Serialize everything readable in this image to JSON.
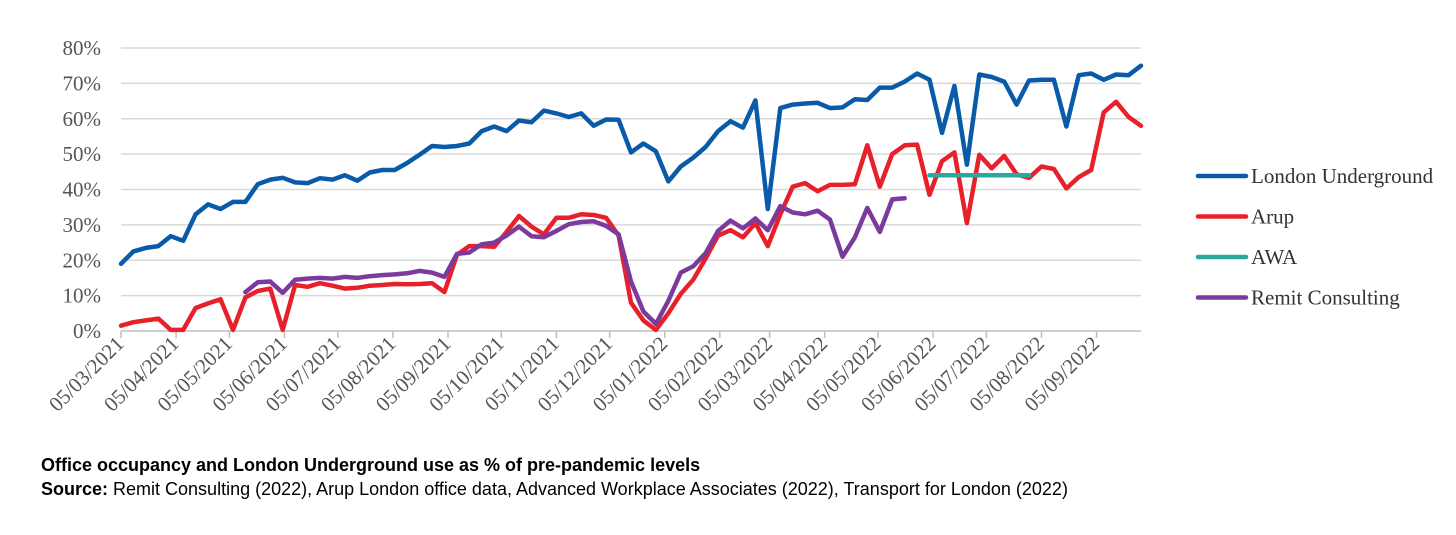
{
  "chart_data": {
    "type": "line",
    "title": "",
    "xlabel": "",
    "ylabel": "",
    "ylim": [
      0,
      80
    ],
    "yticks": [
      0,
      10,
      20,
      30,
      40,
      50,
      60,
      70,
      80
    ],
    "ytick_labels": [
      "0%",
      "10%",
      "20%",
      "30%",
      "40%",
      "50%",
      "60%",
      "70%",
      "80%"
    ],
    "xlim": [
      "2021-03-05",
      "2022-09-30"
    ],
    "xtick_labels": [
      "05/03/2021",
      "05/04/2021",
      "05/05/2021",
      "05/06/2021",
      "05/07/2021",
      "05/08/2021",
      "05/09/2021",
      "05/10/2021",
      "05/11/2021",
      "05/12/2021",
      "05/01/2022",
      "05/02/2022",
      "05/03/2022",
      "05/04/2022",
      "05/05/2022",
      "05/06/2022",
      "05/07/2022",
      "05/08/2022",
      "05/09/2022"
    ],
    "grid": "horizontal",
    "legend_position": "right",
    "series": [
      {
        "name": "London Underground",
        "color": "#0A5AAA",
        "points": [
          [
            "2021-03-05",
            19
          ],
          [
            "2021-03-12",
            22.5
          ],
          [
            "2021-03-19",
            23.5
          ],
          [
            "2021-03-26",
            24
          ],
          [
            "2021-04-02",
            26.8
          ],
          [
            "2021-04-09",
            25.5
          ],
          [
            "2021-04-16",
            33
          ],
          [
            "2021-04-23",
            35.8
          ],
          [
            "2021-04-30",
            34.5
          ],
          [
            "2021-05-07",
            36.5
          ],
          [
            "2021-05-14",
            36.5
          ],
          [
            "2021-05-21",
            41.5
          ],
          [
            "2021-05-28",
            42.8
          ],
          [
            "2021-06-04",
            43.3
          ],
          [
            "2021-06-11",
            42
          ],
          [
            "2021-06-18",
            41.8
          ],
          [
            "2021-06-25",
            43.2
          ],
          [
            "2021-07-02",
            42.8
          ],
          [
            "2021-07-09",
            44
          ],
          [
            "2021-07-16",
            42.5
          ],
          [
            "2021-07-23",
            44.8
          ],
          [
            "2021-07-30",
            45.5
          ],
          [
            "2021-08-06",
            45.5
          ],
          [
            "2021-08-13",
            47.5
          ],
          [
            "2021-08-20",
            49.8
          ],
          [
            "2021-08-27",
            52.3
          ],
          [
            "2021-09-03",
            52
          ],
          [
            "2021-09-10",
            52.3
          ],
          [
            "2021-09-17",
            53
          ],
          [
            "2021-09-24",
            56.5
          ],
          [
            "2021-10-01",
            57.8
          ],
          [
            "2021-10-08",
            56.5
          ],
          [
            "2021-10-15",
            59.5
          ],
          [
            "2021-10-22",
            59
          ],
          [
            "2021-10-29",
            62.3
          ],
          [
            "2021-11-05",
            61.5
          ],
          [
            "2021-11-12",
            60.5
          ],
          [
            "2021-11-19",
            61.5
          ],
          [
            "2021-11-26",
            58
          ],
          [
            "2021-12-03",
            59.8
          ],
          [
            "2021-12-10",
            59.7
          ],
          [
            "2021-12-17",
            50.5
          ],
          [
            "2021-12-24",
            53
          ],
          [
            "2021-12-31",
            50.8
          ],
          [
            "2022-01-07",
            42.3
          ],
          [
            "2022-01-14",
            46.5
          ],
          [
            "2022-01-21",
            49
          ],
          [
            "2022-01-28",
            52
          ],
          [
            "2022-02-04",
            56.5
          ],
          [
            "2022-02-11",
            59.3
          ],
          [
            "2022-02-18",
            57.5
          ],
          [
            "2022-02-25",
            65.2
          ],
          [
            "2022-03-04",
            34.5
          ],
          [
            "2022-03-11",
            63
          ],
          [
            "2022-03-18",
            64
          ],
          [
            "2022-03-25",
            64.3
          ],
          [
            "2022-04-01",
            64.5
          ],
          [
            "2022-04-08",
            63
          ],
          [
            "2022-04-15",
            63.2
          ],
          [
            "2022-04-22",
            65.5
          ],
          [
            "2022-04-29",
            65.3
          ],
          [
            "2022-05-06",
            68.8
          ],
          [
            "2022-05-13",
            68.8
          ],
          [
            "2022-05-20",
            70.5
          ],
          [
            "2022-05-27",
            72.8
          ],
          [
            "2022-06-03",
            71
          ],
          [
            "2022-06-10",
            56
          ],
          [
            "2022-06-17",
            69.3
          ],
          [
            "2022-06-24",
            47
          ],
          [
            "2022-07-01",
            72.5
          ],
          [
            "2022-07-08",
            71.8
          ],
          [
            "2022-07-15",
            70.5
          ],
          [
            "2022-07-22",
            64
          ],
          [
            "2022-07-29",
            70.8
          ],
          [
            "2022-08-05",
            71
          ],
          [
            "2022-08-12",
            71
          ],
          [
            "2022-08-19",
            57.8
          ],
          [
            "2022-08-26",
            72.3
          ],
          [
            "2022-09-02",
            72.8
          ],
          [
            "2022-09-09",
            71
          ],
          [
            "2022-09-16",
            72.5
          ],
          [
            "2022-09-23",
            72.3
          ],
          [
            "2022-09-30",
            75
          ]
        ]
      },
      {
        "name": "Arup",
        "color": "#E8202A",
        "points": [
          [
            "2021-03-05",
            1.5
          ],
          [
            "2021-03-12",
            2.5
          ],
          [
            "2021-03-19",
            3
          ],
          [
            "2021-03-26",
            3.5
          ],
          [
            "2021-04-02",
            0.3
          ],
          [
            "2021-04-09",
            0.3
          ],
          [
            "2021-04-16",
            6.5
          ],
          [
            "2021-04-23",
            7.8
          ],
          [
            "2021-04-30",
            9
          ],
          [
            "2021-05-07",
            0.3
          ],
          [
            "2021-05-14",
            9.5
          ],
          [
            "2021-05-21",
            11.3
          ],
          [
            "2021-05-28",
            12
          ],
          [
            "2021-06-04",
            0.3
          ],
          [
            "2021-06-11",
            13
          ],
          [
            "2021-06-18",
            12.5
          ],
          [
            "2021-06-25",
            13.5
          ],
          [
            "2021-07-02",
            12.8
          ],
          [
            "2021-07-09",
            12
          ],
          [
            "2021-07-16",
            12.2
          ],
          [
            "2021-07-23",
            12.8
          ],
          [
            "2021-07-30",
            13
          ],
          [
            "2021-08-06",
            13.3
          ],
          [
            "2021-08-13",
            13.2
          ],
          [
            "2021-08-20",
            13.3
          ],
          [
            "2021-08-27",
            13.5
          ],
          [
            "2021-09-03",
            11
          ],
          [
            "2021-09-10",
            21.5
          ],
          [
            "2021-09-17",
            24
          ],
          [
            "2021-09-24",
            24
          ],
          [
            "2021-10-01",
            23.8
          ],
          [
            "2021-10-08",
            28
          ],
          [
            "2021-10-15",
            32.5
          ],
          [
            "2021-10-22",
            29.5
          ],
          [
            "2021-10-29",
            27.3
          ],
          [
            "2021-11-05",
            32
          ],
          [
            "2021-11-12",
            32
          ],
          [
            "2021-11-19",
            33
          ],
          [
            "2021-11-26",
            32.8
          ],
          [
            "2021-12-03",
            32
          ],
          [
            "2021-12-10",
            27
          ],
          [
            "2021-12-17",
            8
          ],
          [
            "2021-12-24",
            3
          ],
          [
            "2021-12-31",
            0.3
          ],
          [
            "2022-01-07",
            5
          ],
          [
            "2022-01-14",
            10.5
          ],
          [
            "2022-01-21",
            14.5
          ],
          [
            "2022-01-28",
            20.5
          ],
          [
            "2022-02-04",
            27
          ],
          [
            "2022-02-11",
            28.5
          ],
          [
            "2022-02-18",
            26.5
          ],
          [
            "2022-02-25",
            30.5
          ],
          [
            "2022-03-04",
            24
          ],
          [
            "2022-03-11",
            33
          ],
          [
            "2022-03-18",
            40.8
          ],
          [
            "2022-03-25",
            41.8
          ],
          [
            "2022-04-01",
            39.5
          ],
          [
            "2022-04-08",
            41.3
          ],
          [
            "2022-04-15",
            41.3
          ],
          [
            "2022-04-22",
            41.5
          ],
          [
            "2022-04-29",
            52.5
          ],
          [
            "2022-05-06",
            40.8
          ],
          [
            "2022-05-13",
            50
          ],
          [
            "2022-05-20",
            52.5
          ],
          [
            "2022-05-27",
            52.7
          ],
          [
            "2022-06-03",
            38.5
          ],
          [
            "2022-06-10",
            48
          ],
          [
            "2022-06-17",
            50.5
          ],
          [
            "2022-06-24",
            30.5
          ],
          [
            "2022-07-01",
            49.8
          ],
          [
            "2022-07-08",
            46
          ],
          [
            "2022-07-15",
            49.5
          ],
          [
            "2022-07-22",
            44.3
          ],
          [
            "2022-07-29",
            43.3
          ],
          [
            "2022-08-05",
            46.5
          ],
          [
            "2022-08-12",
            45.8
          ],
          [
            "2022-08-19",
            40.3
          ],
          [
            "2022-08-26",
            43.5
          ],
          [
            "2022-09-02",
            45.5
          ],
          [
            "2022-09-09",
            61.8
          ],
          [
            "2022-09-16",
            64.8
          ],
          [
            "2022-09-23",
            60.5
          ],
          [
            "2022-09-30",
            58
          ]
        ]
      },
      {
        "name": "AWA",
        "color": "#2AA8A0",
        "points": [
          [
            "2022-06-03",
            44
          ],
          [
            "2022-06-17",
            44
          ],
          [
            "2022-07-01",
            44
          ],
          [
            "2022-07-15",
            44
          ],
          [
            "2022-07-29",
            44
          ]
        ]
      },
      {
        "name": "Remit Consulting",
        "color": "#7B3A9C",
        "points": [
          [
            "2021-05-14",
            11
          ],
          [
            "2021-05-21",
            13.8
          ],
          [
            "2021-05-28",
            14
          ],
          [
            "2021-06-04",
            10.8
          ],
          [
            "2021-06-11",
            14.5
          ],
          [
            "2021-06-18",
            14.8
          ],
          [
            "2021-06-25",
            15
          ],
          [
            "2021-07-02",
            14.8
          ],
          [
            "2021-07-09",
            15.3
          ],
          [
            "2021-07-16",
            15
          ],
          [
            "2021-07-23",
            15.5
          ],
          [
            "2021-07-30",
            15.8
          ],
          [
            "2021-08-06",
            16
          ],
          [
            "2021-08-13",
            16.3
          ],
          [
            "2021-08-20",
            17
          ],
          [
            "2021-08-27",
            16.5
          ],
          [
            "2021-09-03",
            15.3
          ],
          [
            "2021-09-10",
            21.8
          ],
          [
            "2021-09-17",
            22.2
          ],
          [
            "2021-09-24",
            24.5
          ],
          [
            "2021-10-01",
            25
          ],
          [
            "2021-10-08",
            27
          ],
          [
            "2021-10-15",
            29.5
          ],
          [
            "2021-10-22",
            26.8
          ],
          [
            "2021-10-29",
            26.5
          ],
          [
            "2021-11-05",
            28.3
          ],
          [
            "2021-11-12",
            30.2
          ],
          [
            "2021-11-19",
            30.8
          ],
          [
            "2021-11-26",
            31
          ],
          [
            "2021-12-03",
            29.7
          ],
          [
            "2021-12-10",
            27.3
          ],
          [
            "2021-12-17",
            14
          ],
          [
            "2021-12-24",
            5.5
          ],
          [
            "2021-12-31",
            2
          ],
          [
            "2022-01-07",
            8.5
          ],
          [
            "2022-01-14",
            16.5
          ],
          [
            "2022-01-21",
            18.3
          ],
          [
            "2022-01-28",
            22
          ],
          [
            "2022-02-04",
            28.3
          ],
          [
            "2022-02-11",
            31.2
          ],
          [
            "2022-02-18",
            29
          ],
          [
            "2022-02-25",
            31.8
          ],
          [
            "2022-03-04",
            28.5
          ],
          [
            "2022-03-11",
            35.3
          ],
          [
            "2022-03-18",
            33.5
          ],
          [
            "2022-03-25",
            33
          ],
          [
            "2022-04-01",
            34
          ],
          [
            "2022-04-08",
            31.5
          ],
          [
            "2022-04-15",
            21
          ],
          [
            "2022-04-22",
            26.5
          ],
          [
            "2022-04-29",
            34.8
          ],
          [
            "2022-05-06",
            28
          ],
          [
            "2022-05-13",
            37.2
          ],
          [
            "2022-05-20",
            37.5
          ]
        ]
      }
    ]
  },
  "caption": {
    "title": "Office occupancy and London Underground use as % of pre-pandemic levels",
    "source_label": "Source:",
    "source_text": " Remit Consulting (2022), Arup London office data, Advanced Workplace Associates (2022), Transport for London (2022)"
  }
}
